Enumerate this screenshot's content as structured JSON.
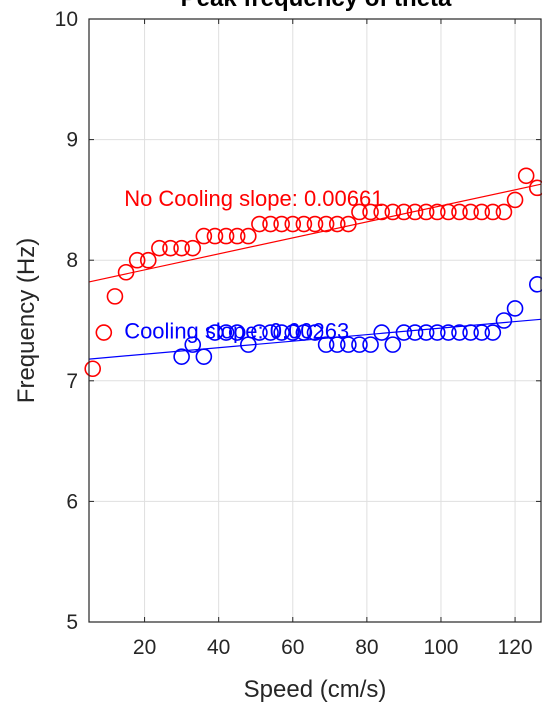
{
  "chart_data": {
    "type": "scatter",
    "title": "Peak frequency of theta",
    "xlabel": "Speed (cm/s)",
    "ylabel": "Frequency (Hz)",
    "xlim": [
      5,
      127
    ],
    "ylim": [
      5,
      10
    ],
    "xticks": [
      20,
      40,
      60,
      80,
      100,
      120
    ],
    "yticks": [
      5,
      6,
      7,
      8,
      9,
      10
    ],
    "grid": true,
    "legend": "none",
    "series": [
      {
        "name": "No Cooling",
        "color": "#ff0000",
        "marker": "open-circle",
        "x": [
          6,
          9,
          12,
          15,
          18,
          21,
          24,
          27,
          30,
          33,
          36,
          39,
          42,
          45,
          48,
          51,
          54,
          57,
          60,
          63,
          66,
          69,
          72,
          75,
          78,
          81,
          84,
          87,
          90,
          93,
          96,
          99,
          102,
          105,
          108,
          111,
          114,
          117,
          120,
          123,
          126
        ],
        "y": [
          7.1,
          7.4,
          7.7,
          7.9,
          8.0,
          8.0,
          8.1,
          8.1,
          8.1,
          8.1,
          8.2,
          8.2,
          8.2,
          8.2,
          8.2,
          8.3,
          8.3,
          8.3,
          8.3,
          8.3,
          8.3,
          8.3,
          8.3,
          8.3,
          8.4,
          8.4,
          8.4,
          8.4,
          8.4,
          8.4,
          8.4,
          8.4,
          8.4,
          8.4,
          8.4,
          8.4,
          8.4,
          8.4,
          8.5,
          8.7,
          8.6
        ],
        "fit": {
          "x": [
            5,
            127
          ],
          "y": [
            7.82,
            8.63
          ]
        }
      },
      {
        "name": "Cooling",
        "color": "#0000ff",
        "marker": "open-circle",
        "x": [
          30,
          33,
          36,
          39,
          42,
          45,
          48,
          51,
          54,
          57,
          60,
          63,
          66,
          69,
          72,
          75,
          78,
          81,
          84,
          87,
          90,
          93,
          96,
          99,
          102,
          105,
          108,
          111,
          114,
          117,
          120,
          126
        ],
        "y": [
          7.2,
          7.3,
          7.2,
          7.4,
          7.4,
          7.4,
          7.3,
          7.4,
          7.4,
          7.4,
          7.4,
          7.4,
          7.4,
          7.3,
          7.3,
          7.3,
          7.3,
          7.3,
          7.4,
          7.3,
          7.4,
          7.4,
          7.4,
          7.4,
          7.4,
          7.4,
          7.4,
          7.4,
          7.4,
          7.5,
          7.6,
          7.8
        ],
        "fit": {
          "x": [
            5,
            127
          ],
          "y": [
            7.18,
            7.51
          ]
        }
      }
    ],
    "annotations": [
      {
        "text": "No Cooling slope: 0.00661",
        "color": "#ff0000",
        "x": 14.5,
        "y": 8.45
      },
      {
        "text": "Cooling slope: 0.00263",
        "color": "#0000ff",
        "x": 14.5,
        "y": 7.35
      }
    ]
  }
}
